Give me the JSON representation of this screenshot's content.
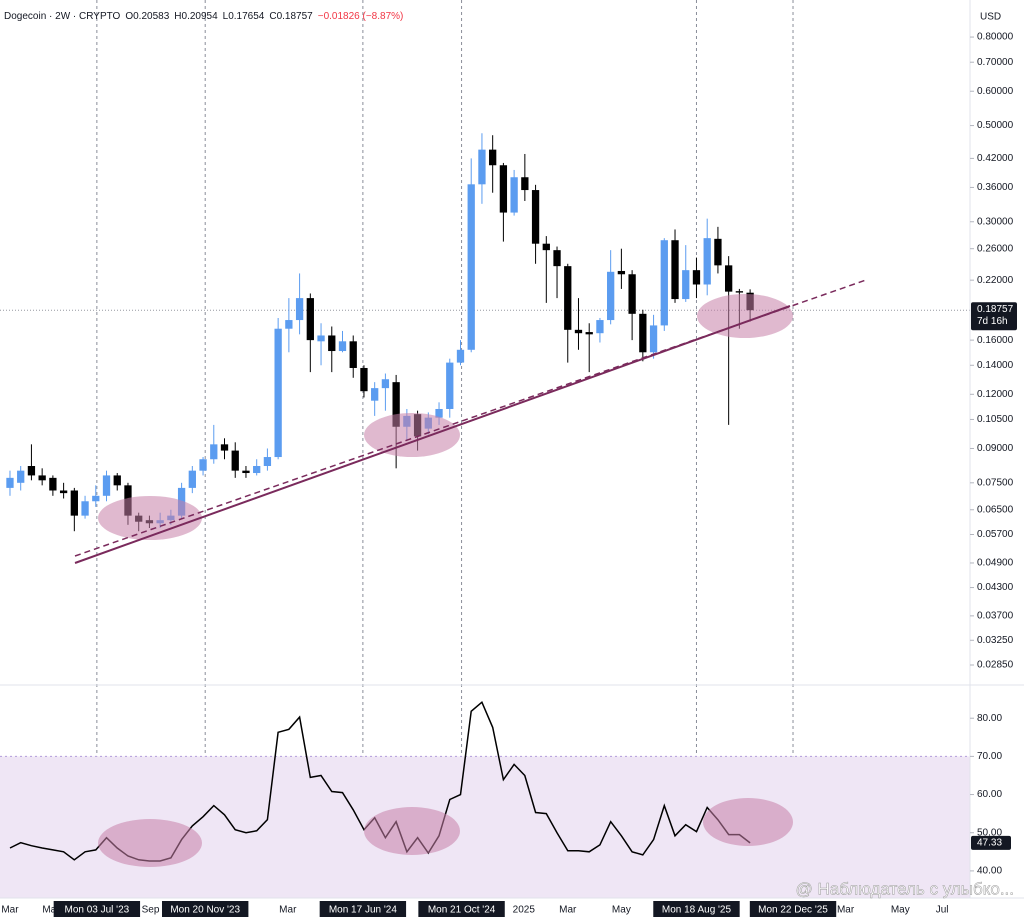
{
  "header": {
    "legend": [
      "Dogecoin · 2W · CRYPTO",
      "O0.20583",
      "H0.20954",
      "L0.17654",
      "C0.18757",
      "−0.01826 (−8.87%)"
    ],
    "currency": "USD",
    "countdown": "7d 16h",
    "watermark": "@ Наблюдатель с улыбко..."
  },
  "chart_data": [
    {
      "type": "candlestick",
      "log": true,
      "up_color": "#5b9cf0",
      "down_color": "#000000",
      "open": [
        0.073,
        0.075,
        0.082,
        0.078,
        0.077,
        0.072,
        0.072,
        0.063,
        0.068,
        0.07,
        0.078,
        0.074,
        0.063,
        0.0615,
        0.0605,
        0.0615,
        0.063,
        0.073,
        0.08,
        0.085,
        0.092,
        0.089,
        0.08,
        0.079,
        0.082,
        0.086,
        0.17,
        0.178,
        0.2,
        0.159,
        0.164,
        0.151,
        0.159,
        0.138,
        0.116,
        0.124,
        0.128,
        0.101,
        0.108,
        0.1,
        0.106,
        0.111,
        0.142,
        0.152,
        0.366,
        0.44,
        0.405,
        0.315,
        0.38,
        0.355,
        0.267,
        0.258,
        0.237,
        0.169,
        0.167,
        0.166,
        0.178,
        0.231,
        0.227,
        0.184,
        0.15,
        0.173,
        0.272,
        0.199,
        0.232,
        0.215,
        0.274,
        0.238,
        0.2075,
        0.20583
      ],
      "high": [
        0.08,
        0.082,
        0.092,
        0.081,
        0.078,
        0.075,
        0.073,
        0.07,
        0.074,
        0.08,
        0.079,
        0.075,
        0.064,
        0.063,
        0.064,
        0.065,
        0.075,
        0.082,
        0.086,
        0.102,
        0.095,
        0.093,
        0.082,
        0.085,
        0.09,
        0.18,
        0.2,
        0.228,
        0.205,
        0.175,
        0.172,
        0.168,
        0.164,
        0.14,
        0.128,
        0.134,
        0.133,
        0.111,
        0.11,
        0.109,
        0.115,
        0.145,
        0.16,
        0.42,
        0.48,
        0.475,
        0.41,
        0.395,
        0.43,
        0.365,
        0.278,
        0.263,
        0.24,
        0.2,
        0.175,
        0.18,
        0.258,
        0.26,
        0.232,
        0.188,
        0.183,
        0.275,
        0.288,
        0.265,
        0.248,
        0.305,
        0.292,
        0.25,
        0.21,
        0.20954
      ],
      "low": [
        0.07,
        0.072,
        0.076,
        0.074,
        0.07,
        0.069,
        0.058,
        0.062,
        0.066,
        0.068,
        0.072,
        0.06,
        0.058,
        0.059,
        0.059,
        0.06,
        0.062,
        0.071,
        0.078,
        0.083,
        0.085,
        0.077,
        0.077,
        0.078,
        0.08,
        0.085,
        0.15,
        0.165,
        0.135,
        0.14,
        0.135,
        0.15,
        0.131,
        0.118,
        0.107,
        0.11,
        0.081,
        0.094,
        0.089,
        0.097,
        0.102,
        0.106,
        0.14,
        0.15,
        0.33,
        0.35,
        0.27,
        0.31,
        0.335,
        0.24,
        0.195,
        0.2,
        0.142,
        0.152,
        0.135,
        0.158,
        0.174,
        0.21,
        0.16,
        0.143,
        0.145,
        0.168,
        0.195,
        0.196,
        0.2,
        0.203,
        0.228,
        0.102,
        0.17,
        0.17654
      ],
      "close": [
        0.077,
        0.08,
        0.078,
        0.076,
        0.072,
        0.071,
        0.063,
        0.068,
        0.07,
        0.078,
        0.074,
        0.063,
        0.061,
        0.0605,
        0.0615,
        0.063,
        0.073,
        0.08,
        0.085,
        0.092,
        0.089,
        0.08,
        0.079,
        0.082,
        0.086,
        0.17,
        0.178,
        0.2,
        0.16,
        0.164,
        0.151,
        0.159,
        0.138,
        0.122,
        0.124,
        0.13,
        0.101,
        0.107,
        0.096,
        0.106,
        0.111,
        0.142,
        0.152,
        0.366,
        0.44,
        0.405,
        0.315,
        0.38,
        0.355,
        0.267,
        0.258,
        0.237,
        0.169,
        0.166,
        0.165,
        0.178,
        0.23,
        0.227,
        0.184,
        0.15,
        0.173,
        0.272,
        0.199,
        0.232,
        0.215,
        0.275,
        0.238,
        0.207,
        0.206,
        0.18757
      ],
      "xlim": [
        -0.93,
        89.5
      ],
      "ylim": [
        0.02563,
        0.974
      ],
      "xticks": [
        {
          "value": 0,
          "label": "Mar"
        },
        {
          "value": 3.9,
          "label": "May"
        },
        {
          "value": 8.1,
          "label": "Mon 03 Jul '23",
          "line": true
        },
        {
          "value": 13.1,
          "label": "Sep"
        },
        {
          "value": 18.2,
          "label": "Mon 20 Nov '23",
          "line": true
        },
        {
          "value": 25.9,
          "label": "Mar"
        },
        {
          "value": 32.9,
          "label": "Mon 17 Jun '24",
          "line": true
        },
        {
          "value": 42.1,
          "label": "Mon 21 Oct '24",
          "line": true
        },
        {
          "value": 47.9,
          "label": "2025"
        },
        {
          "value": 52,
          "label": "Mar"
        },
        {
          "value": 57,
          "label": "May"
        },
        {
          "value": 64,
          "label": "Mon 18 Aug '25",
          "line": true
        },
        {
          "value": 73,
          "label": "Mon 22 Dec '25",
          "line": true
        },
        {
          "value": 77.9,
          "label": "Mar"
        },
        {
          "value": 83,
          "label": "May"
        },
        {
          "value": 86.9,
          "label": "Jul"
        }
      ],
      "yticks": [
        {
          "value": 0.8,
          "label": "0.80000"
        },
        {
          "value": 0.7,
          "label": "0.70000"
        },
        {
          "value": 0.6,
          "label": "0.60000"
        },
        {
          "value": 0.5,
          "label": "0.50000"
        },
        {
          "value": 0.42,
          "label": "0.42000"
        },
        {
          "value": 0.36,
          "label": "0.36000"
        },
        {
          "value": 0.3,
          "label": "0.30000"
        },
        {
          "value": 0.26,
          "label": "0.26000"
        },
        {
          "value": 0.22,
          "label": "0.22000"
        },
        {
          "value": 0.16,
          "label": "0.16000"
        },
        {
          "value": 0.14,
          "label": "0.14000"
        },
        {
          "value": 0.12,
          "label": "0.12000"
        },
        {
          "value": 0.105,
          "label": "0.10500"
        },
        {
          "value": 0.09,
          "label": "0.09000"
        },
        {
          "value": 0.075,
          "label": "0.07500"
        },
        {
          "value": 0.065,
          "label": "0.06500"
        },
        {
          "value": 0.057,
          "label": "0.05700"
        },
        {
          "value": 0.049,
          "label": "0.04900"
        },
        {
          "value": 0.043,
          "label": "0.04300"
        },
        {
          "value": 0.037,
          "label": "0.03700"
        },
        {
          "value": 0.0325,
          "label": "0.03250"
        },
        {
          "value": 0.0285,
          "label": "0.02850"
        }
      ]
    },
    {
      "type": "line",
      "color": "#000000",
      "band": [
        30,
        70
      ],
      "band_color": "#efe6f5",
      "values": [
        46,
        47.4,
        46.6,
        46,
        45.5,
        45,
        42.9,
        45,
        45.5,
        48.7,
        46,
        43.9,
        42.9,
        42.6,
        42.6,
        43.4,
        48.2,
        51.8,
        54.2,
        57.1,
        54.7,
        50.8,
        50,
        50.5,
        53.4,
        76.3,
        77.1,
        80.3,
        64.5,
        65,
        60.8,
        60.5,
        56,
        50.8,
        53.9,
        48.7,
        52.9,
        45,
        48.7,
        44.7,
        49.2,
        58.7,
        60,
        81.8,
        84.2,
        77.6,
        63.9,
        67.9,
        65,
        55.3,
        55,
        50,
        45.3,
        45.3,
        45,
        46.8,
        52.9,
        49.2,
        45,
        44.2,
        48.2,
        57.1,
        49.2,
        52.1,
        50.3,
        56.6,
        53.4,
        49.5,
        49.5,
        47.33
      ],
      "ylim": [
        32.9,
        88.7
      ],
      "yticks": [
        {
          "value": 80,
          "label": "80.00"
        },
        {
          "value": 70,
          "label": "70.00"
        },
        {
          "value": 60,
          "label": "60.00"
        },
        {
          "value": 50,
          "label": "50.00"
        },
        {
          "value": 40,
          "label": "40.00"
        }
      ]
    }
  ]
}
